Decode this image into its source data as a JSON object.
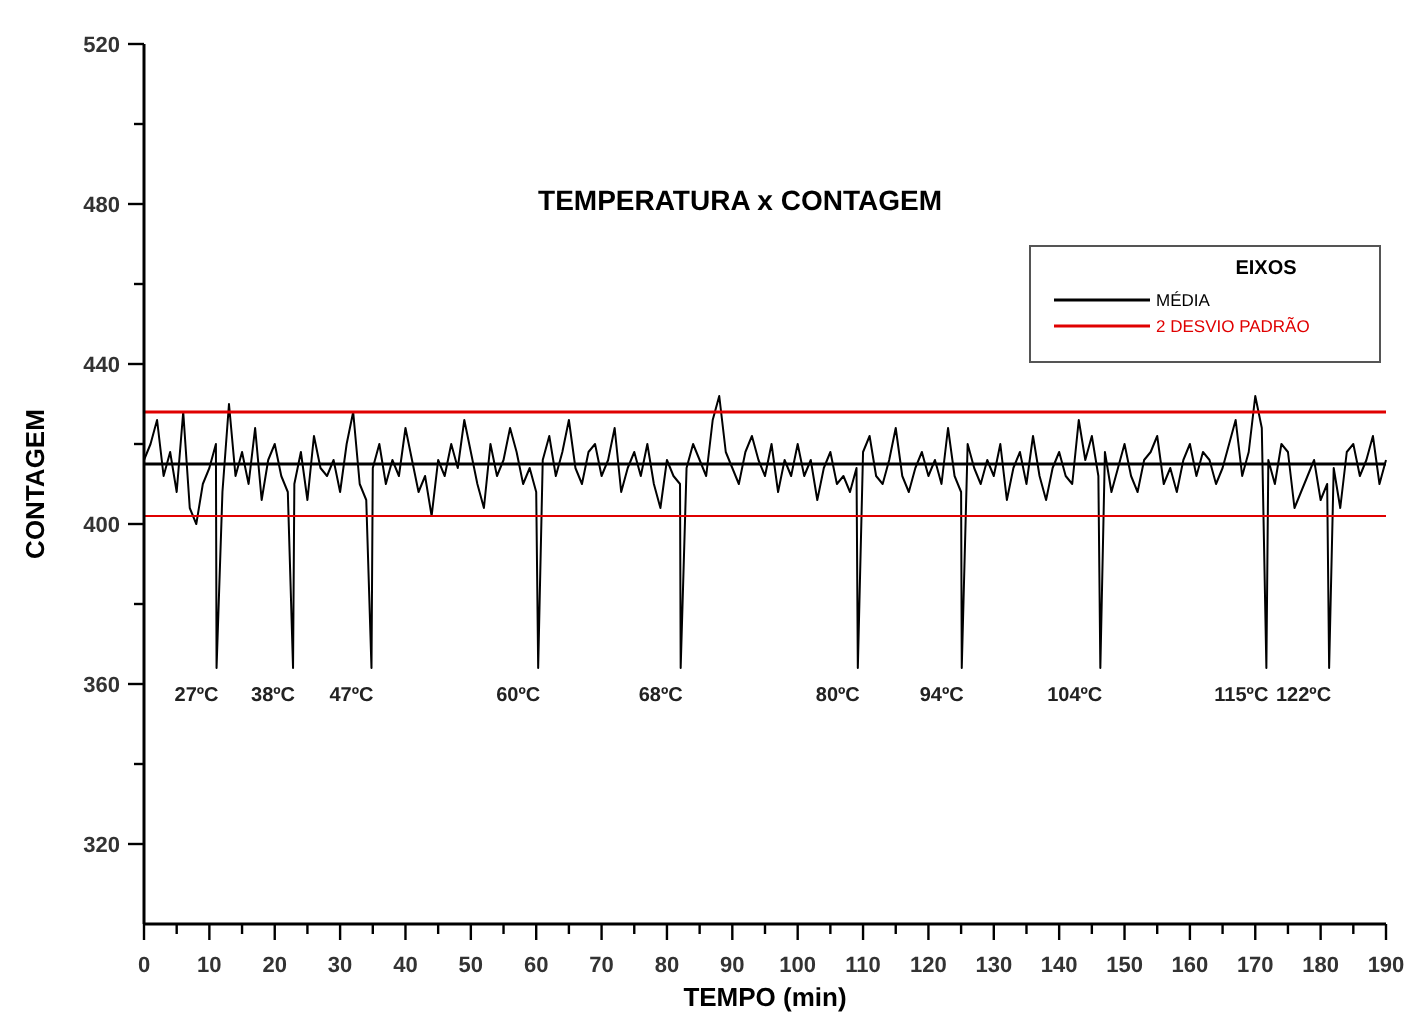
{
  "chart_data": {
    "type": "line",
    "title": "TEMPERATURA x CONTAGEM",
    "xlabel": "TEMPO (min)",
    "ylabel": "CONTAGEM",
    "legend_title": "EIXOS",
    "legend": "top right",
    "grid": false,
    "marker": "none",
    "line_style": "solid",
    "xlim": [
      0,
      190
    ],
    "ylim": [
      300,
      520
    ],
    "xticks": [
      0,
      {
        "value": 5,
        "label": null
      },
      10,
      {
        "value": 15,
        "label": null
      },
      20,
      {
        "value": 25,
        "label": null
      },
      30,
      {
        "value": 35,
        "label": null
      },
      40,
      {
        "value": 45,
        "label": null
      },
      50,
      {
        "value": 55,
        "label": null
      },
      60,
      {
        "value": 65,
        "label": null
      },
      70,
      {
        "value": 75,
        "label": null
      },
      80,
      {
        "value": 85,
        "label": null
      },
      90,
      {
        "value": 95,
        "label": null
      },
      100,
      {
        "value": 105,
        "label": null
      },
      110,
      {
        "value": 115,
        "label": null
      },
      120,
      {
        "value": 125,
        "label": null
      },
      130,
      {
        "value": 135,
        "label": null
      },
      140,
      {
        "value": 145,
        "label": null
      },
      150,
      {
        "value": 155,
        "label": null
      },
      160,
      {
        "value": 165,
        "label": null
      },
      170,
      {
        "value": 175,
        "label": null
      },
      180,
      {
        "value": 185,
        "label": null
      },
      190
    ],
    "yticks": [
      320,
      {
        "value": 340,
        "label": null
      },
      360,
      {
        "value": 380,
        "label": null
      },
      400,
      {
        "value": 420,
        "label": null
      },
      440,
      {
        "value": 460,
        "label": null
      },
      480,
      {
        "value": 500,
        "label": null
      },
      520
    ],
    "series": [
      {
        "color": "#000000",
        "x": [
          0,
          1,
          2,
          3,
          4,
          5,
          6,
          7,
          8,
          9,
          10,
          11,
          11.1,
          12,
          13,
          14,
          15,
          16,
          17,
          18,
          19,
          20,
          21,
          22,
          22.8,
          23,
          24,
          25,
          26,
          27,
          28,
          29,
          30,
          31,
          32,
          33,
          34,
          34.8,
          35,
          36,
          37,
          38,
          39,
          40,
          41,
          42,
          43,
          44,
          45,
          46,
          47,
          48,
          49,
          50,
          51,
          52,
          53,
          54,
          55,
          56,
          57,
          58,
          59,
          60,
          60.3,
          61,
          62,
          63,
          64,
          65,
          66,
          67,
          68,
          69,
          70,
          71,
          72,
          73,
          74,
          75,
          76,
          77,
          78,
          79,
          80,
          81,
          82,
          82.1,
          83,
          84,
          85,
          86,
          87,
          88,
          89,
          90,
          91,
          92,
          93,
          94,
          95,
          96,
          97,
          98,
          99,
          100,
          101,
          102,
          103,
          104,
          105,
          106,
          107,
          108,
          109,
          109.2,
          110,
          111,
          112,
          113,
          114,
          115,
          116,
          117,
          118,
          119,
          120,
          121,
          122,
          123,
          124,
          125,
          125.1,
          126,
          127,
          128,
          129,
          130,
          131,
          132,
          133,
          134,
          135,
          136,
          137,
          138,
          139,
          140,
          141,
          142,
          143,
          144,
          145,
          146,
          146.3,
          147,
          148,
          149,
          150,
          151,
          152,
          153,
          154,
          155,
          156,
          157,
          158,
          159,
          160,
          161,
          162,
          163,
          164,
          165,
          166,
          167,
          168,
          169,
          170,
          171,
          171.7,
          172,
          173,
          174,
          175,
          176,
          177,
          178,
          179,
          180,
          181,
          181.3,
          182,
          183,
          184,
          185,
          186,
          187,
          188,
          189,
          190
        ],
        "values": [
          416,
          420,
          426,
          412,
          418,
          408,
          428,
          404,
          400,
          410,
          414,
          420,
          364,
          408,
          430,
          412,
          418,
          410,
          424,
          406,
          416,
          420,
          412,
          408,
          364,
          410,
          418,
          406,
          422,
          414,
          412,
          416,
          408,
          420,
          428,
          410,
          406,
          364,
          414,
          420,
          410,
          416,
          412,
          424,
          416,
          408,
          412,
          402,
          416,
          412,
          420,
          414,
          426,
          418,
          410,
          404,
          420,
          412,
          416,
          424,
          418,
          410,
          414,
          408,
          364,
          416,
          422,
          412,
          418,
          426,
          414,
          410,
          418,
          420,
          412,
          416,
          424,
          408,
          414,
          418,
          412,
          420,
          410,
          404,
          416,
          412,
          410,
          364,
          414,
          420,
          416,
          412,
          426,
          432,
          418,
          414,
          410,
          418,
          422,
          416,
          412,
          420,
          408,
          416,
          412,
          420,
          412,
          416,
          406,
          414,
          418,
          410,
          412,
          408,
          414,
          364,
          418,
          422,
          412,
          410,
          416,
          424,
          412,
          408,
          414,
          418,
          412,
          416,
          410,
          424,
          412,
          408,
          364,
          420,
          414,
          410,
          416,
          412,
          420,
          406,
          414,
          418,
          410,
          422,
          412,
          406,
          414,
          418,
          412,
          410,
          426,
          416,
          422,
          412,
          364,
          418,
          408,
          414,
          420,
          412,
          408,
          416,
          418,
          422,
          410,
          414,
          408,
          416,
          420,
          412,
          418,
          416,
          410,
          414,
          420,
          426,
          412,
          418,
          432,
          424,
          364,
          416,
          410,
          420,
          418,
          404,
          408,
          412,
          416,
          406,
          410,
          364,
          414,
          404,
          418,
          420,
          412,
          416,
          422,
          410,
          416
        ]
      },
      {
        "name": "MÉDIA",
        "color": "#000000",
        "x": [
          0,
          190
        ],
        "values": [
          415,
          415
        ]
      },
      {
        "name": "2 DESVIO PADRÃO",
        "color": "#e00000",
        "x": [
          0,
          190
        ],
        "values": [
          428,
          428
        ]
      },
      {
        "color": "#e00000",
        "x": [
          0,
          190
        ],
        "values": [
          402,
          402
        ]
      }
    ],
    "annotations": [
      {
        "text": "27ºC",
        "x": 11.1,
        "y": 364
      },
      {
        "text": "38ºC",
        "x": 22.8,
        "y": 364
      },
      {
        "text": "47ºC",
        "x": 34.8,
        "y": 364
      },
      {
        "text": "60ºC",
        "x": 60.3,
        "y": 364
      },
      {
        "text": "68ºC",
        "x": 82.1,
        "y": 364
      },
      {
        "text": "80ºC",
        "x": 109.2,
        "y": 364
      },
      {
        "text": "94ºC",
        "x": 125.1,
        "y": 364
      },
      {
        "text": "104ºC",
        "x": 146.3,
        "y": 364
      },
      {
        "text": "115ºC",
        "x": 171.7,
        "y": 364
      },
      {
        "text": "122ºC",
        "x": 181.3,
        "y": 364
      }
    ]
  }
}
